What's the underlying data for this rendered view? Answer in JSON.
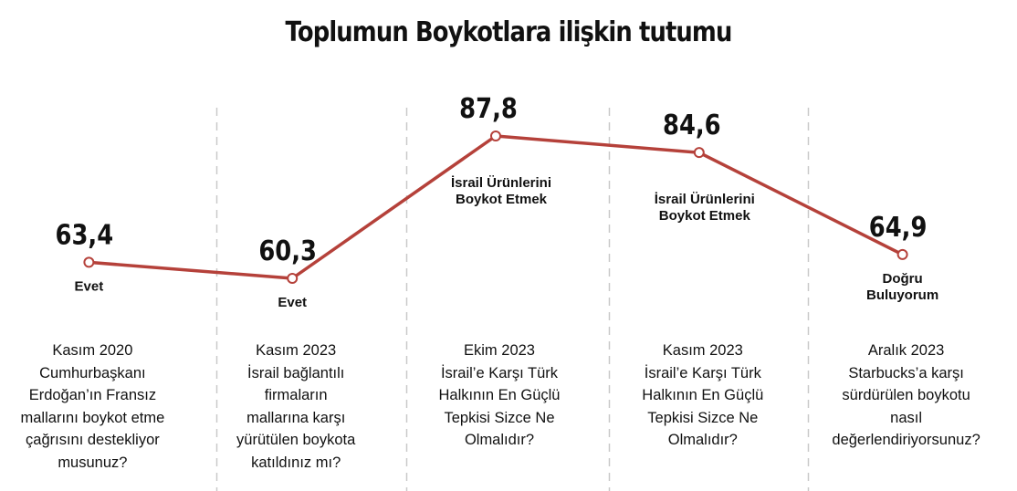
{
  "chart_data": {
    "type": "line",
    "title": "Toplumun Boykotlara ilişkin tutumu",
    "line_color": "#b5413a",
    "points": [
      {
        "value": 63.4,
        "value_label": "63,4",
        "label": "Evet",
        "question": "Kasım 2020\nCumhurbaşkanı\nErdoğan’ın Fransız\nmallarını boykot etme\nçağrısını destekliyor\nmusunuz?"
      },
      {
        "value": 60.3,
        "value_label": "60,3",
        "label": "Evet",
        "question": "Kasım 2023\nİsrail bağlantılı\nfirmaların\nmallarına karşı\nyürütülen boykota\nkatıldınız mı?"
      },
      {
        "value": 87.8,
        "value_label": "87,8",
        "label": "İsrail Ürünlerini\nBoykot Etmek",
        "question": "Ekim 2023\nİsrail’e Karşı Türk\nHalkının En Güçlü\nTepkisi Sizce Ne\nOlmalıdır?"
      },
      {
        "value": 84.6,
        "value_label": "84,6",
        "label": "İsrail Ürünlerini\nBoykot Etmek",
        "question": "Kasım 2023\nİsrail’e Karşı Türk\nHalkının En Güçlü\nTepkisi Sizce Ne\nOlmalıdır?"
      },
      {
        "value": 64.9,
        "value_label": "64,9",
        "label": "Doğru\nBuluyorum",
        "question": "Aralık 2023\nStarbucks’a karşı\nsürdürülen boykotu\nnasıl\ndeğerlendiriyorsunuz?"
      }
    ]
  }
}
